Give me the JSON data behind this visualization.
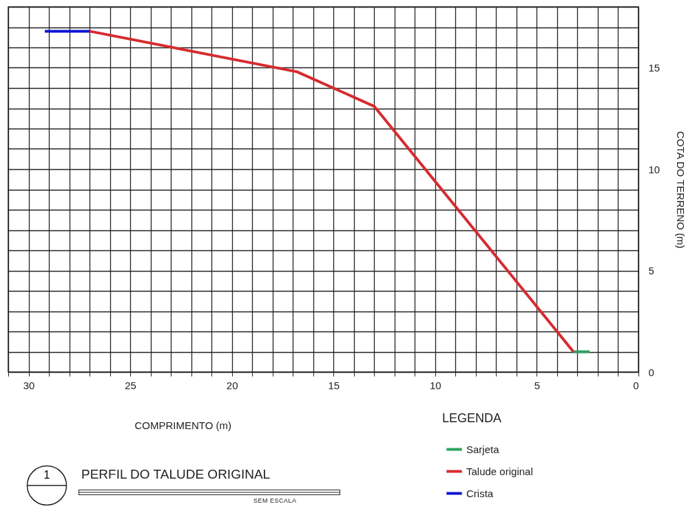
{
  "chart_data": {
    "type": "line",
    "title": "PERFIL DO TALUDE ORIGINAL",
    "xlabel": "COMPRIMENTO (m)",
    "ylabel": "COTA DO TERRENO (m)",
    "legend_title": "LEGENDA",
    "annotations": [
      "1",
      "SEM ESCALA"
    ],
    "series": [
      {
        "name": "Sarjeta",
        "color": "#2ca25f",
        "x": [
          3.2,
          2.4
        ],
        "values": [
          1.0,
          1.0
        ]
      },
      {
        "name": "Talude original",
        "color": "#d62b30",
        "x": [
          27,
          16.8,
          13,
          3.2
        ],
        "values": [
          16.8,
          14.8,
          13.1,
          1.0
        ]
      },
      {
        "name": "Crista",
        "color": "#0a14d2",
        "x": [
          29.2,
          27
        ],
        "values": [
          16.8,
          16.8
        ]
      }
    ],
    "xlim": [
      31,
      0
    ],
    "ylim": [
      0,
      18
    ],
    "xticks": [
      {
        "value": 31,
        "label": null
      },
      30,
      {
        "value": 29,
        "label": null
      },
      {
        "value": 28,
        "label": null
      },
      {
        "value": 27,
        "label": null
      },
      {
        "value": 26,
        "label": null
      },
      25,
      {
        "value": 24,
        "label": null
      },
      {
        "value": 23,
        "label": null
      },
      {
        "value": 22,
        "label": null
      },
      {
        "value": 21,
        "label": null
      },
      20,
      {
        "value": 19,
        "label": null
      },
      {
        "value": 18,
        "label": null
      },
      {
        "value": 17,
        "label": null
      },
      {
        "value": 16,
        "label": null
      },
      15,
      {
        "value": 14,
        "label": null
      },
      {
        "value": 13,
        "label": null
      },
      {
        "value": 12,
        "label": null
      },
      {
        "value": 11,
        "label": null
      },
      10,
      {
        "value": 9,
        "label": null
      },
      {
        "value": 8,
        "label": null
      },
      {
        "value": 7,
        "label": null
      },
      {
        "value": 6,
        "label": null
      },
      5,
      {
        "value": 4,
        "label": null
      },
      {
        "value": 3,
        "label": null
      },
      {
        "value": 2,
        "label": null
      },
      {
        "value": 1,
        "label": null
      },
      0
    ],
    "yticks": [
      0,
      {
        "value": 1,
        "label": null
      },
      {
        "value": 2,
        "label": null
      },
      {
        "value": 3,
        "label": null
      },
      {
        "value": 4,
        "label": null
      },
      5,
      {
        "value": 6,
        "label": null
      },
      {
        "value": 7,
        "label": null
      },
      {
        "value": 8,
        "label": null
      },
      {
        "value": 9,
        "label": null
      },
      10,
      {
        "value": 11,
        "label": null
      },
      {
        "value": 12,
        "label": null
      },
      {
        "value": 13,
        "label": null
      },
      {
        "value": 14,
        "label": null
      },
      15,
      {
        "value": 16,
        "label": null
      },
      {
        "value": 17,
        "label": null
      },
      {
        "value": 18,
        "label": null
      }
    ],
    "grid": true,
    "legend": "bottom right",
    "marker": "none",
    "line_style": "solid"
  }
}
